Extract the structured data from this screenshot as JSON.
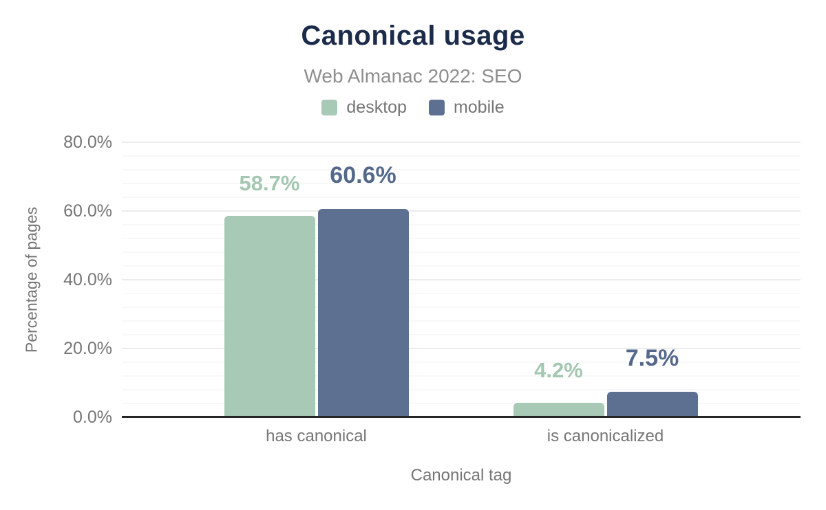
{
  "chart_data": {
    "type": "bar",
    "title": "Canonical usage",
    "subtitle": "Web Almanac 2022: SEO",
    "categories": [
      "has canonical",
      "is canonicalized"
    ],
    "series": [
      {
        "name": "desktop",
        "values": [
          58.7,
          4.2
        ],
        "value_labels": [
          "58.7%",
          "4.2%"
        ],
        "color": "#a7c9b5",
        "label_color": "#a3c7b0"
      },
      {
        "name": "mobile",
        "values": [
          60.6,
          7.5
        ],
        "value_labels": [
          "60.6%",
          "7.5%"
        ],
        "color": "#5d7092",
        "label_color": "#54688c"
      }
    ],
    "xlabel": "Canonical tag",
    "ylabel": "Percentage of pages",
    "ylim": [
      0,
      80
    ],
    "yticks": [
      {
        "value": 0,
        "label": "0.0%"
      },
      {
        "value": 20,
        "label": "20.0%"
      },
      {
        "value": 40,
        "label": "40.0%"
      },
      {
        "value": 60,
        "label": "60.0%"
      },
      {
        "value": 80,
        "label": "80.0%"
      }
    ],
    "grid": {
      "minor_step_pct": 4,
      "major_step_pct": 20,
      "orientation": "horizontal"
    },
    "legend_position": "top"
  },
  "colors": {
    "title_text": "#1c2b4a",
    "subtitle_text": "#8e8e8e",
    "axis_text": "#757575",
    "axis_line": "#262626",
    "grid_major": "#ececec",
    "grid_minor": "#f8f8f8",
    "background": "#ffffff"
  }
}
